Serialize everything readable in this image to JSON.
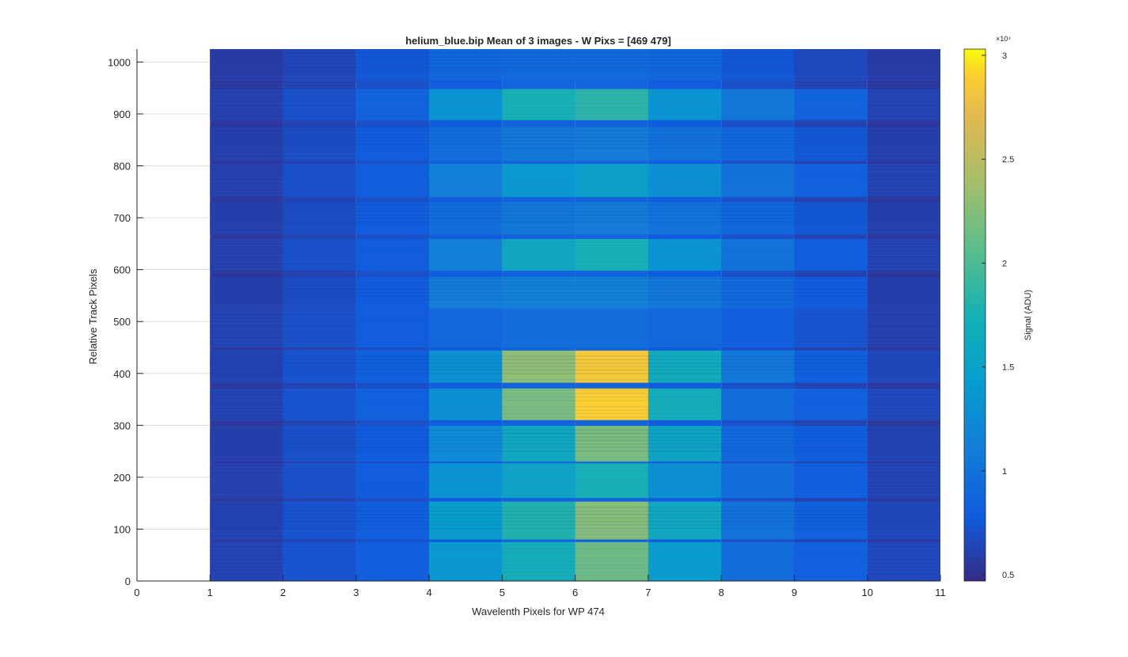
{
  "chart_data": {
    "type": "heatmap",
    "title": "helium_blue.bip  Mean of 3 images - W Pixs = [469  479]",
    "xlabel": "Wavelenth Pixels for WP 474",
    "ylabel": "Relative Track Pixels",
    "xlim": [
      0,
      11
    ],
    "ylim": [
      0,
      1025
    ],
    "xticks": [
      "0",
      "1",
      "2",
      "3",
      "4",
      "5",
      "6",
      "7",
      "8",
      "9",
      "10",
      "11"
    ],
    "yticks": [
      "0",
      "100",
      "200",
      "300",
      "400",
      "500",
      "600",
      "700",
      "800",
      "900",
      "1000"
    ],
    "grid": true,
    "colorbar": {
      "label": "Signal (ADU)",
      "exponent_label": "×10⁴",
      "limits": [
        0.47,
        3.03
      ],
      "ticks": [
        "0.5",
        "1",
        "1.5",
        "2",
        "2.5",
        "3"
      ],
      "colormap": "parula"
    },
    "columns": [
      {
        "x_start": 1,
        "x_end": 2
      },
      {
        "x_start": 2,
        "x_end": 3
      },
      {
        "x_start": 3,
        "x_end": 4
      },
      {
        "x_start": 4,
        "x_end": 5
      },
      {
        "x_start": 5,
        "x_end": 6
      },
      {
        "x_start": 6,
        "x_end": 7
      },
      {
        "x_start": 7,
        "x_end": 8
      },
      {
        "x_start": 8,
        "x_end": 9
      },
      {
        "x_start": 9,
        "x_end": 10
      },
      {
        "x_start": 10,
        "x_end": 11
      }
    ],
    "background_values": [
      0.55,
      0.62,
      0.7,
      0.78,
      0.85,
      0.85,
      0.78,
      0.7,
      0.62,
      0.55
    ],
    "bands": [
      {
        "y_start": 0,
        "y_end": 75,
        "values": [
          0.62,
          0.72,
          0.8,
          1.4,
          1.7,
          2.15,
          1.45,
          0.95,
          0.82,
          0.65
        ]
      },
      {
        "y_start": 80,
        "y_end": 153,
        "values": [
          0.62,
          0.72,
          0.8,
          1.45,
          1.8,
          2.25,
          1.6,
          1.0,
          0.82,
          0.65
        ]
      },
      {
        "y_start": 160,
        "y_end": 227,
        "values": [
          0.6,
          0.7,
          0.78,
          1.35,
          1.55,
          1.75,
          1.3,
          0.95,
          0.8,
          0.62
        ]
      },
      {
        "y_start": 230,
        "y_end": 299,
        "values": [
          0.6,
          0.7,
          0.78,
          1.25,
          1.6,
          2.2,
          1.55,
          0.9,
          0.8,
          0.62
        ]
      },
      {
        "y_start": 310,
        "y_end": 371,
        "values": [
          0.62,
          0.72,
          0.82,
          1.3,
          2.2,
          2.9,
          1.7,
          0.95,
          0.82,
          0.65
        ]
      },
      {
        "y_start": 382,
        "y_end": 444,
        "values": [
          0.62,
          0.72,
          0.82,
          1.3,
          2.3,
          2.85,
          1.65,
          1.05,
          0.82,
          0.65
        ]
      },
      {
        "y_start": 450,
        "y_end": 525,
        "values": [
          0.62,
          0.7,
          0.78,
          0.9,
          0.95,
          0.95,
          0.9,
          0.8,
          0.72,
          0.6
        ]
      },
      {
        "y_start": 525,
        "y_end": 586,
        "values": [
          0.6,
          0.68,
          0.78,
          1.1,
          1.15,
          1.15,
          1.05,
          0.9,
          0.78,
          0.6
        ]
      },
      {
        "y_start": 598,
        "y_end": 659,
        "values": [
          0.6,
          0.7,
          0.78,
          1.15,
          1.6,
          1.75,
          1.35,
          1.0,
          0.8,
          0.62
        ]
      },
      {
        "y_start": 668,
        "y_end": 730,
        "values": [
          0.6,
          0.68,
          0.78,
          0.95,
          1.05,
          1.1,
          1.0,
          0.88,
          0.75,
          0.6
        ]
      },
      {
        "y_start": 740,
        "y_end": 804,
        "values": [
          0.6,
          0.7,
          0.8,
          1.15,
          1.4,
          1.5,
          1.3,
          1.0,
          0.82,
          0.62
        ]
      },
      {
        "y_start": 810,
        "y_end": 875,
        "values": [
          0.6,
          0.68,
          0.78,
          0.95,
          1.05,
          1.1,
          1.0,
          0.88,
          0.75,
          0.6
        ]
      },
      {
        "y_start": 888,
        "y_end": 948,
        "values": [
          0.6,
          0.7,
          0.85,
          1.35,
          1.75,
          1.85,
          1.35,
          1.05,
          0.85,
          0.62
        ]
      },
      {
        "y_start": 965,
        "y_end": 1025,
        "values": [
          0.58,
          0.64,
          0.75,
          0.88,
          0.92,
          0.92,
          0.88,
          0.75,
          0.66,
          0.58
        ]
      }
    ]
  }
}
